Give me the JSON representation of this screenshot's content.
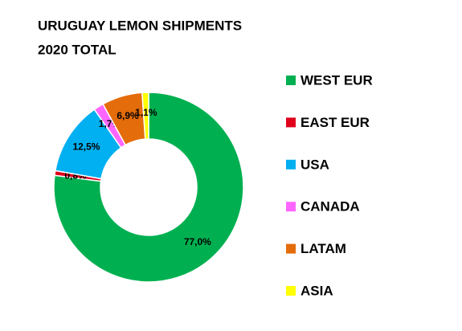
{
  "chart_data": {
    "type": "donut",
    "title": "URUGUAY LEMON SHIPMENTS",
    "subtitle": "2020 TOTAL",
    "categories": [
      "WEST EUR",
      "EAST EUR",
      "USA",
      "CANADA",
      "LATAM",
      "ASIA"
    ],
    "values": [
      77.0,
      0.8,
      12.5,
      1.7,
      6.9,
      1.1
    ],
    "value_labels": [
      "77,0%",
      "0,8%",
      "12,5%",
      "1,7%",
      "6,9%",
      "1,1%"
    ],
    "colors": [
      "#00b050",
      "#e0001b",
      "#00b0f0",
      "#ff66ff",
      "#e46c0a",
      "#ffff00"
    ],
    "legend": "right"
  }
}
